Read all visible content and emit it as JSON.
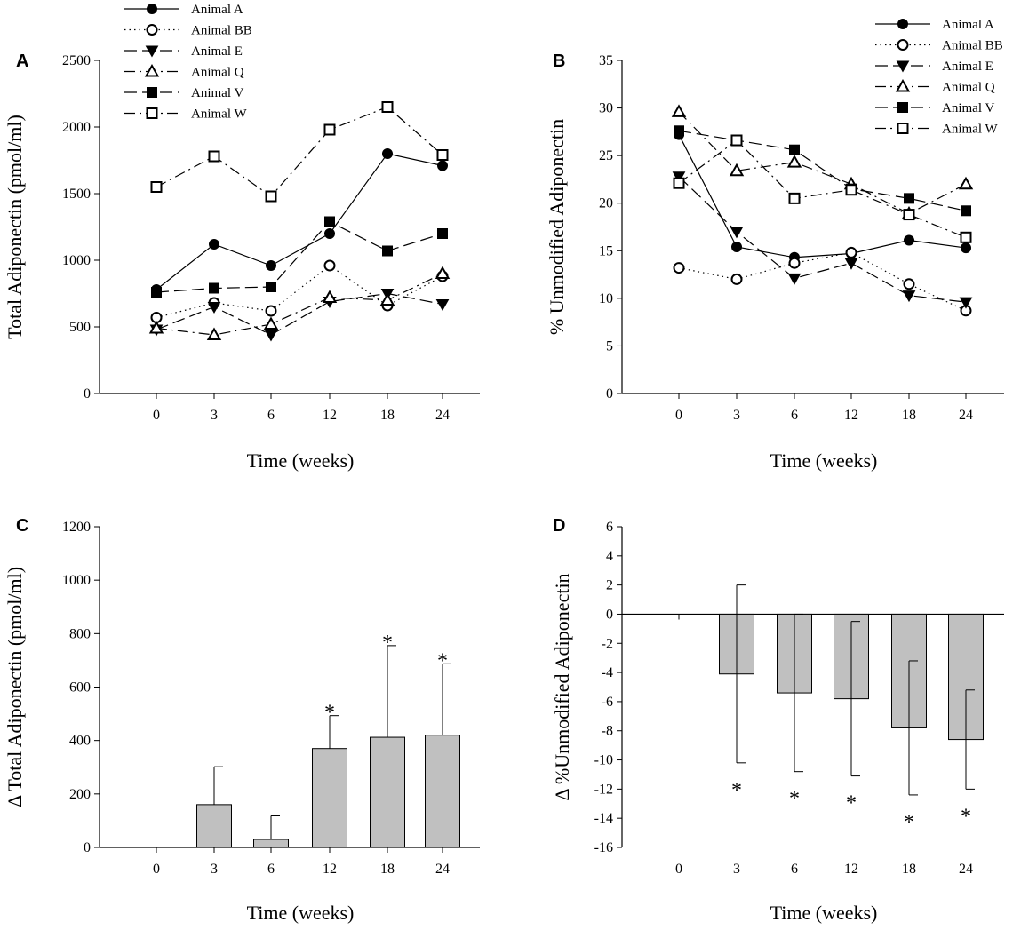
{
  "colors": {
    "bar_fill": "#c0c0c0",
    "ink": "#000000",
    "marker_open": "#ffffff"
  },
  "chart_data": [
    {
      "id": "A",
      "type": "line",
      "panel_label": "A",
      "xlabel": "Time (weeks)",
      "ylabel": "Total Adiponectin (pmol/ml)",
      "categories": [
        "0",
        "3",
        "6",
        "12",
        "18",
        "24"
      ],
      "ylim": [
        0,
        2500
      ],
      "yticks": [
        0,
        500,
        1000,
        1500,
        2000,
        2500
      ],
      "legend_position": "top-left",
      "series": [
        {
          "name": "Animal A",
          "marker": "circle-filled",
          "dash": "solid",
          "values": [
            780,
            1120,
            960,
            1200,
            1800,
            1710
          ]
        },
        {
          "name": "Animal BB",
          "marker": "circle-open",
          "dash": "dotted",
          "values": [
            570,
            680,
            620,
            960,
            660,
            880
          ]
        },
        {
          "name": "Animal E",
          "marker": "triangle-down-filled",
          "dash": "longdash",
          "values": [
            480,
            650,
            440,
            690,
            750,
            670
          ]
        },
        {
          "name": "Animal Q",
          "marker": "triangle-up-open",
          "dash": "dashdot",
          "values": [
            490,
            440,
            520,
            720,
            700,
            900
          ]
        },
        {
          "name": "Animal V",
          "marker": "square-filled",
          "dash": "longdash",
          "values": [
            760,
            790,
            800,
            1290,
            1070,
            1200
          ]
        },
        {
          "name": "Animal W",
          "marker": "square-open",
          "dash": "dashdot",
          "values": [
            1550,
            1780,
            1480,
            1980,
            2150,
            1790
          ]
        }
      ]
    },
    {
      "id": "B",
      "type": "line",
      "panel_label": "B",
      "xlabel": "Time (weeks)",
      "ylabel": "% Unmodified Adiponectin",
      "categories": [
        "0",
        "3",
        "6",
        "12",
        "18",
        "24"
      ],
      "ylim": [
        0,
        35
      ],
      "yticks": [
        0,
        5,
        10,
        15,
        20,
        25,
        30,
        35
      ],
      "legend_position": "top-right",
      "series": [
        {
          "name": "Animal A",
          "marker": "circle-filled",
          "dash": "solid",
          "values": [
            27.2,
            15.4,
            14.3,
            14.7,
            16.1,
            15.3
          ]
        },
        {
          "name": "Animal BB",
          "marker": "circle-open",
          "dash": "dotted",
          "values": [
            13.2,
            12.0,
            13.7,
            14.8,
            11.5,
            8.7
          ]
        },
        {
          "name": "Animal E",
          "marker": "triangle-down-filled",
          "dash": "longdash",
          "values": [
            22.8,
            17.0,
            12.1,
            13.7,
            10.3,
            9.6
          ]
        },
        {
          "name": "Animal Q",
          "marker": "triangle-up-open",
          "dash": "dashdot",
          "values": [
            29.6,
            23.4,
            24.3,
            22.0,
            18.9,
            22.0
          ]
        },
        {
          "name": "Animal V",
          "marker": "square-filled",
          "dash": "longdash",
          "values": [
            27.6,
            26.6,
            25.6,
            21.5,
            20.5,
            19.2
          ]
        },
        {
          "name": "Animal W",
          "marker": "square-open",
          "dash": "dashdot",
          "values": [
            22.1,
            26.6,
            20.5,
            21.4,
            18.8,
            16.4
          ]
        }
      ]
    },
    {
      "id": "C",
      "type": "bar",
      "panel_label": "C",
      "xlabel": "Time (weeks)",
      "ylabel": "Δ Total Adiponectin (pmol/ml)",
      "categories": [
        "0",
        "3",
        "6",
        "12",
        "18",
        "24"
      ],
      "ylim": [
        0,
        1200
      ],
      "yticks": [
        0,
        200,
        400,
        600,
        800,
        1000,
        1200
      ],
      "values": [
        0,
        160,
        30,
        370,
        412,
        420
      ],
      "errors": [
        0,
        142,
        88,
        123,
        343,
        267
      ],
      "error_direction": "up",
      "significance": [
        "",
        "",
        "",
        "*",
        "*",
        "*"
      ]
    },
    {
      "id": "D",
      "type": "bar",
      "panel_label": "D",
      "xlabel": "Time (weeks)",
      "ylabel": "Δ %Unmodified Adiponectin",
      "categories": [
        "0",
        "3",
        "6",
        "12",
        "18",
        "24"
      ],
      "ylim": [
        -16,
        6
      ],
      "yticks": [
        -16,
        -14,
        -12,
        -10,
        -8,
        -6,
        -4,
        -2,
        0,
        2,
        4,
        6
      ],
      "values": [
        0,
        -4.1,
        -5.4,
        -5.8,
        -7.8,
        -8.6
      ],
      "errors": [
        0,
        6.1,
        5.4,
        5.3,
        4.6,
        3.4
      ],
      "error_direction": "both",
      "significance": [
        "",
        "*",
        "*",
        "*",
        "*",
        "*"
      ]
    }
  ]
}
